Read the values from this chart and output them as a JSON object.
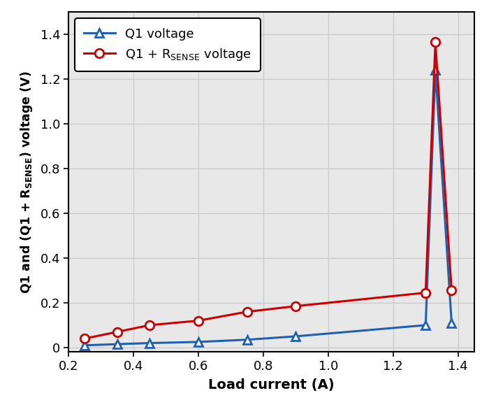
{
  "q1_x": [
    0.25,
    0.35,
    0.45,
    0.6,
    0.75,
    0.9,
    1.3,
    1.33,
    1.38
  ],
  "q1_y": [
    0.01,
    0.015,
    0.02,
    0.025,
    0.035,
    0.05,
    0.1,
    1.24,
    0.11
  ],
  "q1rsense_x": [
    0.25,
    0.35,
    0.45,
    0.6,
    0.75,
    0.9,
    1.3,
    1.33,
    1.38
  ],
  "q1rsense_y": [
    0.04,
    0.07,
    0.1,
    0.12,
    0.16,
    0.185,
    0.245,
    1.365,
    0.255
  ],
  "q1_color": "#2060b0",
  "q1rsense_color": "#cc0000",
  "xlabel": "Load current (A)",
  "ylabel": "Q1 and (Q1 + R$_\\mathregular{SENSE}$) voltage (V)",
  "xlim": [
    0.2,
    1.45
  ],
  "ylim": [
    -0.02,
    1.5
  ],
  "xticks": [
    0.2,
    0.4,
    0.6,
    0.8,
    1.0,
    1.2,
    1.4
  ],
  "yticks": [
    0.0,
    0.2,
    0.4,
    0.6,
    0.8,
    1.0,
    1.2,
    1.4
  ],
  "legend_q1": "Q1 voltage",
  "legend_rsense": "Q1 + R$_\\mathregular{SENSE}$ voltage",
  "grid_color": "#cccccc",
  "background_color": "#e8e8e8"
}
